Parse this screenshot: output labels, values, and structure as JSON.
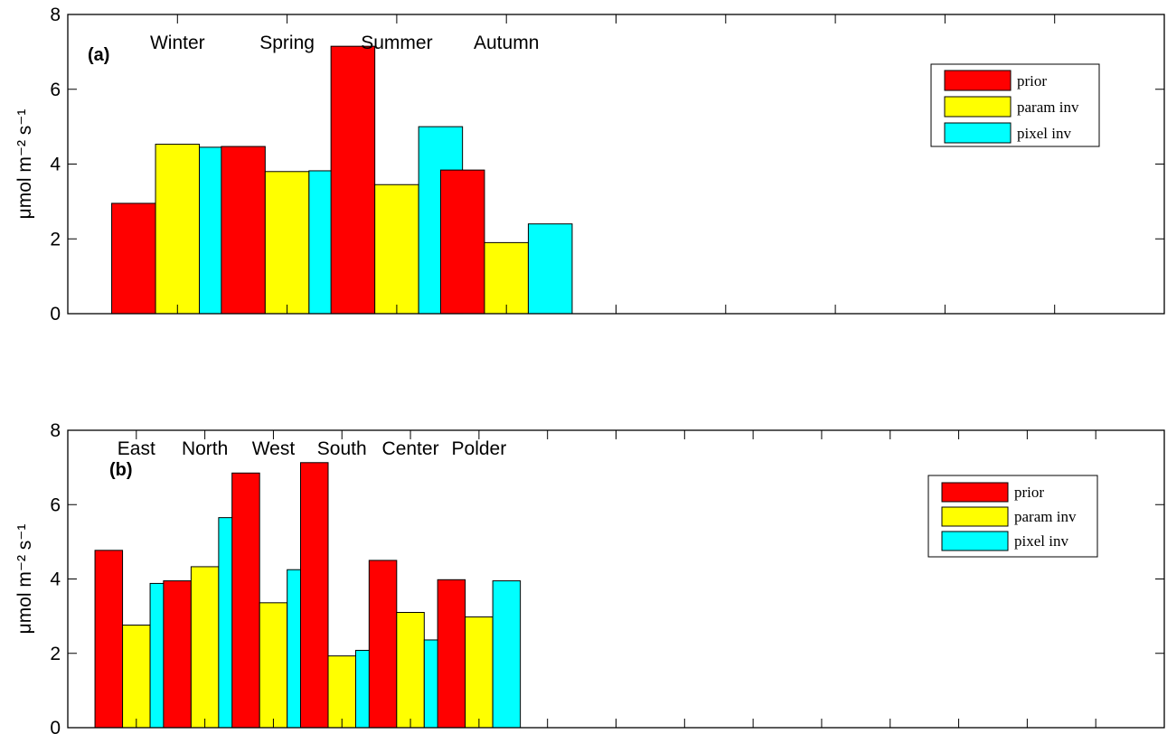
{
  "colors": {
    "prior": "#ff0000",
    "param inv": "#ffff00",
    "pixel inv": "#00ffff"
  },
  "chart_data": [
    {
      "type": "bar",
      "panel_label": "(a)",
      "categories": [
        "Winter",
        "Spring",
        "Summer",
        "Autumn"
      ],
      "series": [
        {
          "name": "prior",
          "values": [
            2.95,
            4.47,
            7.15,
            3.84
          ]
        },
        {
          "name": "param inv",
          "values": [
            4.53,
            3.8,
            3.45,
            1.9
          ]
        },
        {
          "name": "pixel inv",
          "values": [
            4.45,
            3.82,
            5.0,
            2.4
          ]
        }
      ],
      "ylabel": "μmol m⁻² s⁻¹",
      "ylim": [
        0,
        8
      ],
      "yticks": [
        "0",
        "2",
        "4",
        "6",
        "8"
      ],
      "legend_position": "top-right",
      "grid": false
    },
    {
      "type": "bar",
      "panel_label": "(b)",
      "categories": [
        "East",
        "North",
        "West",
        "South",
        "Center",
        "Polder"
      ],
      "series": [
        {
          "name": "prior",
          "values": [
            4.77,
            3.95,
            6.85,
            7.13,
            4.5,
            3.98
          ]
        },
        {
          "name": "param inv",
          "values": [
            2.76,
            4.33,
            3.36,
            1.93,
            3.1,
            2.98
          ]
        },
        {
          "name": "pixel inv",
          "values": [
            3.88,
            5.65,
            4.25,
            2.08,
            2.36,
            3.95
          ]
        }
      ],
      "ylabel": "μmol m⁻² s⁻¹",
      "ylim": [
        0,
        8
      ],
      "yticks": [
        "0",
        "2",
        "4",
        "6",
        "8"
      ],
      "legend_position": "top-right",
      "grid": false
    }
  ]
}
